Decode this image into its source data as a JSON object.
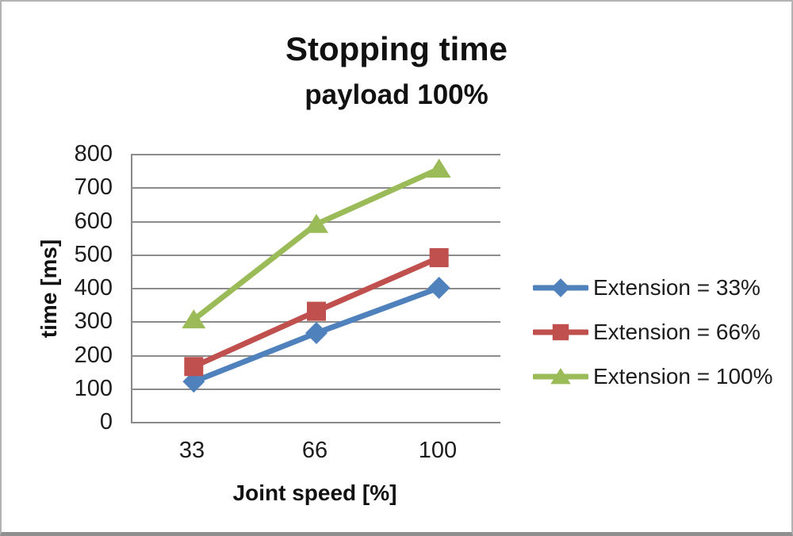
{
  "chart_data": {
    "type": "line",
    "title": "Stopping time",
    "subtitle": "payload 100%",
    "xlabel": "Joint speed [%]",
    "ylabel": "time [ms]",
    "categories": [
      "33",
      "66",
      "100"
    ],
    "series": [
      {
        "name": "Extension = 33%",
        "marker": "diamond",
        "color": "#4F81BD",
        "values": [
          120,
          265,
          400
        ]
      },
      {
        "name": "Extension = 66%",
        "marker": "square",
        "color": "#C0504D",
        "values": [
          165,
          330,
          490
        ]
      },
      {
        "name": "Extension = 100%",
        "marker": "triangle",
        "color": "#9BBB59",
        "values": [
          305,
          590,
          755
        ]
      }
    ],
    "ylim": [
      0,
      800
    ],
    "ytick_interval": 100,
    "yticks": [
      0,
      100,
      200,
      300,
      400,
      500,
      600,
      700,
      800
    ],
    "grid": true,
    "legend_position": "right",
    "gridline_color": "#8c8c8c",
    "axis_color": "#898989",
    "text_color": "#1c1c1c"
  }
}
